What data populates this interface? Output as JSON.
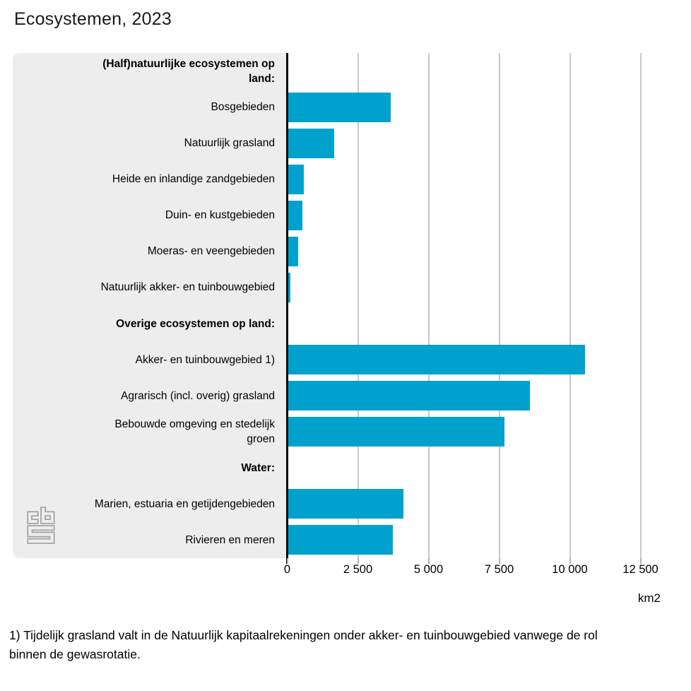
{
  "title": "Ecosystemen, 2023",
  "chart_data": {
    "type": "bar",
    "orientation": "horizontal",
    "title": "Ecosystemen, 2023",
    "unit_label": "km2",
    "xlim": [
      0,
      13825
    ],
    "grid": true,
    "x_ticks": [
      {
        "value": 0,
        "label": "0"
      },
      {
        "value": 2500,
        "label": "2 500"
      },
      {
        "value": 5000,
        "label": "5 000"
      },
      {
        "value": 7500,
        "label": "7 500"
      },
      {
        "value": 10000,
        "label": "10 000"
      },
      {
        "value": 12500,
        "label": "12 500"
      }
    ],
    "rows": [
      {
        "label": [
          "(Half)natuurlijke ecosystemen op",
          "land:"
        ],
        "header": true,
        "value": null
      },
      {
        "label": "Bosgebieden",
        "header": false,
        "value": 3630
      },
      {
        "label": "Natuurlijk grasland",
        "header": false,
        "value": 1630
      },
      {
        "label": "Heide en inlandige zandgebieden",
        "header": false,
        "value": 560
      },
      {
        "label": "Duin- en kustgebieden",
        "header": false,
        "value": 500
      },
      {
        "label": "Moeras- en veengebieden",
        "header": false,
        "value": 360
      },
      {
        "label": "Natuurlijk akker- en tuinbouwgebied",
        "header": false,
        "value": 70
      },
      {
        "label": "Overige ecosystemen op land:",
        "header": true,
        "value": null
      },
      {
        "label": "Akker- en tuinbouwgebied 1)",
        "header": false,
        "value": 10500
      },
      {
        "label": "Agrarisch (incl. overig) grasland",
        "header": false,
        "value": 8550
      },
      {
        "label": [
          "Bebouwde omgeving en stedelijk",
          "groen"
        ],
        "header": false,
        "value": 7650
      },
      {
        "label": "Water:",
        "header": true,
        "value": null
      },
      {
        "label": "Marien, estuaria en getijdengebieden",
        "header": false,
        "value": 4080
      },
      {
        "label": "Rivieren en meren",
        "header": false,
        "value": 3700
      }
    ],
    "colors": {
      "bar": "#00a1cd",
      "panel": "#ededed",
      "gridline": "#c9c9c9",
      "axis": "#000000",
      "tick": "#b3b3b3"
    }
  },
  "logo": {
    "name": "CBS"
  },
  "footnote_lines": [
    "1) Tijdelijk grasland valt in de Natuurlijk kapitaalrekeningen onder akker- en tuinbouwgebied vanwege de rol",
    "binnen de gewasrotatie."
  ]
}
